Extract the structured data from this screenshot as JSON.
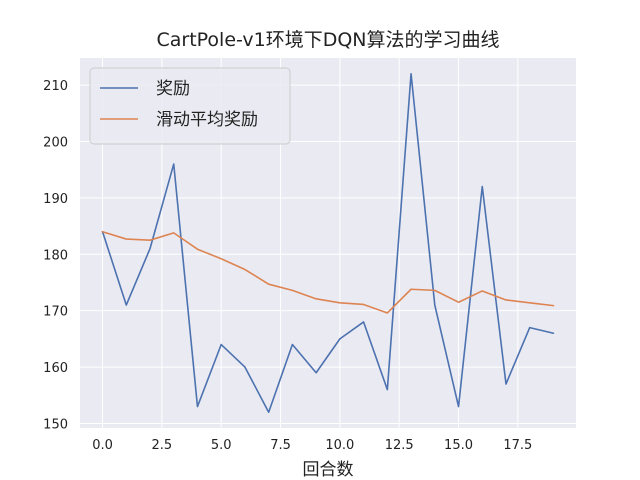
{
  "chart_data": {
    "type": "line",
    "title": "CartPole-v1环境下DQN算法的学习曲线",
    "xlabel": "回合数",
    "ylabel": "",
    "x": [
      0,
      1,
      2,
      3,
      4,
      5,
      6,
      7,
      8,
      9,
      10,
      11,
      12,
      13,
      14,
      15,
      16,
      17,
      18,
      19
    ],
    "series": [
      {
        "name": "奖励",
        "color": "#4c72b0",
        "values": [
          184,
          171,
          181,
          196,
          153,
          164,
          160,
          152,
          164,
          159,
          165,
          168,
          156,
          212,
          171,
          153,
          192,
          157,
          167,
          166
        ]
      },
      {
        "name": "滑动平均奖励",
        "color": "#dd8452",
        "values": [
          184,
          182.7,
          182.5,
          183.8,
          180.9,
          179.2,
          177.3,
          174.7,
          173.6,
          172.1,
          171.4,
          171.1,
          169.6,
          173.8,
          173.6,
          171.5,
          173.5,
          171.9,
          171.4,
          170.9
        ]
      }
    ],
    "xlim": [
      -0.95,
      19.95
    ],
    "ylim": [
      149.2,
      214.8
    ],
    "xticks": [
      0,
      2.5,
      5,
      7.5,
      10,
      12.5,
      15,
      17.5
    ],
    "xtick_labels": [
      "0.0",
      "2.5",
      "5.0",
      "7.5",
      "10.0",
      "12.5",
      "15.0",
      "17.5"
    ],
    "yticks": [
      150,
      160,
      170,
      180,
      190,
      200,
      210
    ],
    "ytick_labels": [
      "150",
      "160",
      "170",
      "180",
      "190",
      "200",
      "210"
    ],
    "grid": true,
    "legend_position": "top-left",
    "background_color": "#eaeaf2"
  }
}
